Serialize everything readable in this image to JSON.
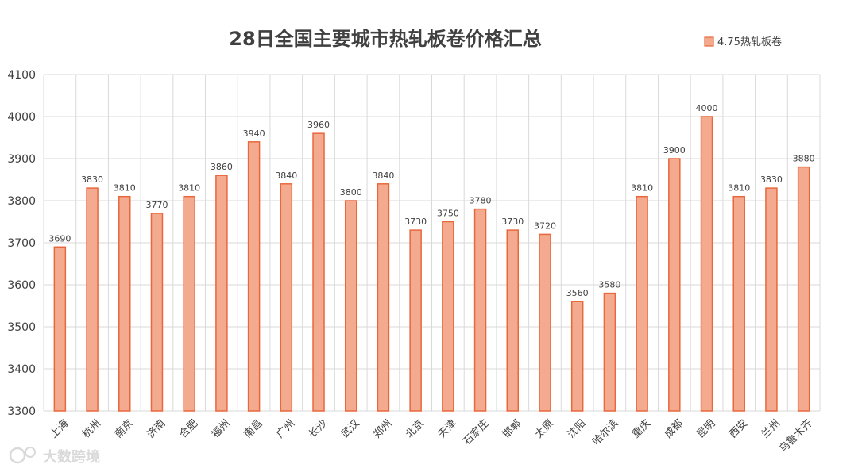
{
  "chart_data": {
    "type": "bar",
    "title": "28日全国主要城市热轧板卷价格汇总",
    "categories": [
      "上海",
      "杭州",
      "南京",
      "济南",
      "合肥",
      "福州",
      "南昌",
      "广州",
      "长沙",
      "武汉",
      "郑州",
      "北京",
      "天津",
      "石家庄",
      "邯郸",
      "太原",
      "沈阳",
      "哈尔滨",
      "重庆",
      "成都",
      "昆明",
      "西安",
      "兰州",
      "乌鲁木齐"
    ],
    "series": [
      {
        "name": "4.75热轧板卷",
        "values": [
          3690,
          3830,
          3810,
          3770,
          3810,
          3860,
          3940,
          3840,
          3960,
          3800,
          3840,
          3730,
          3750,
          3780,
          3730,
          3720,
          3560,
          3580,
          3810,
          3900,
          4000,
          3810,
          3830,
          3880
        ]
      }
    ],
    "ylim": [
      3300,
      4100
    ],
    "yticks": [
      3300,
      3400,
      3500,
      3600,
      3700,
      3800,
      3900,
      4000,
      4100
    ],
    "xlabel": "",
    "ylabel": "",
    "grid": true,
    "legend_position": "top-right",
    "colors": {
      "bar_fill": "#f4aa8e",
      "bar_stroke": "#e8683d",
      "grid": "#d9d9d9"
    }
  },
  "watermark": {
    "text": "大数跨境"
  }
}
